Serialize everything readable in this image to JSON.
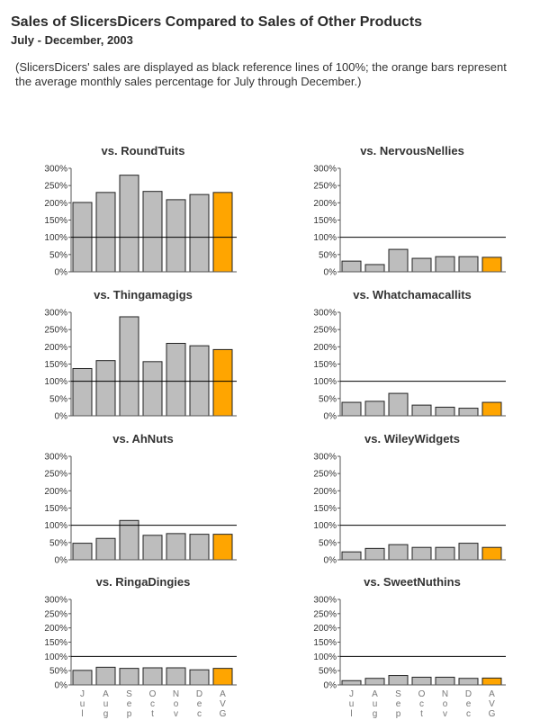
{
  "header": {
    "title": "Sales of SlicersDicers Compared to Sales of Other Products",
    "subtitle": "July - December, 2003",
    "note": "(SlicersDicers' sales are displayed as black reference lines of 100%; the orange bars represent the average monthly sales percentage for July through December.)"
  },
  "colors": {
    "bar": "#bdbdbd",
    "avg_bar": "#ffa500",
    "reference_line": "#000000"
  },
  "chart_data": [
    {
      "type": "bar",
      "title": "vs. RoundTuits",
      "categories": [
        "Jul",
        "Aug",
        "Sep",
        "Oct",
        "Nov",
        "Dec",
        "AVG"
      ],
      "values": [
        201,
        230,
        280,
        233,
        209,
        224,
        230
      ],
      "ylim": [
        0,
        300
      ],
      "y_ticks": [
        "0%",
        "50%",
        "100%",
        "150%",
        "200%",
        "250%",
        "300%"
      ],
      "reference_value": 100
    },
    {
      "type": "bar",
      "title": "vs. NervousNellies",
      "categories": [
        "Jul",
        "Aug",
        "Sep",
        "Oct",
        "Nov",
        "Dec",
        "AVG"
      ],
      "values": [
        31,
        21,
        65,
        39,
        44,
        44,
        42
      ],
      "ylim": [
        0,
        300
      ],
      "y_ticks": [
        "0%",
        "50%",
        "100%",
        "150%",
        "200%",
        "250%",
        "300%"
      ],
      "reference_value": 100
    },
    {
      "type": "bar",
      "title": "vs. Thingamagigs",
      "categories": [
        "Jul",
        "Aug",
        "Sep",
        "Oct",
        "Nov",
        "Dec",
        "AVG"
      ],
      "values": [
        137,
        160,
        287,
        157,
        210,
        203,
        192
      ],
      "ylim": [
        0,
        300
      ],
      "y_ticks": [
        "0%",
        "50%",
        "100%",
        "150%",
        "200%",
        "250%",
        "300%"
      ],
      "reference_value": 100
    },
    {
      "type": "bar",
      "title": "vs. Whatchamacallits",
      "categories": [
        "Jul",
        "Aug",
        "Sep",
        "Oct",
        "Nov",
        "Dec",
        "AVG"
      ],
      "values": [
        39,
        42,
        65,
        31,
        25,
        22,
        39
      ],
      "ylim": [
        0,
        300
      ],
      "y_ticks": [
        "0%",
        "50%",
        "100%",
        "150%",
        "200%",
        "250%",
        "300%"
      ],
      "reference_value": 100
    },
    {
      "type": "bar",
      "title": "vs. AhNuts",
      "categories": [
        "Jul",
        "Aug",
        "Sep",
        "Oct",
        "Nov",
        "Dec",
        "AVG"
      ],
      "values": [
        48,
        62,
        114,
        71,
        76,
        74,
        74
      ],
      "ylim": [
        0,
        300
      ],
      "y_ticks": [
        "0%",
        "50%",
        "100%",
        "150%",
        "200%",
        "250%",
        "300%"
      ],
      "reference_value": 100
    },
    {
      "type": "bar",
      "title": "vs. WileyWidgets",
      "categories": [
        "Jul",
        "Aug",
        "Sep",
        "Oct",
        "Nov",
        "Dec",
        "AVG"
      ],
      "values": [
        23,
        33,
        44,
        36,
        36,
        48,
        36
      ],
      "ylim": [
        0,
        300
      ],
      "y_ticks": [
        "0%",
        "50%",
        "100%",
        "150%",
        "200%",
        "250%",
        "300%"
      ],
      "reference_value": 100
    },
    {
      "type": "bar",
      "title": "vs. RingaDingies",
      "categories": [
        "Jul",
        "Aug",
        "Sep",
        "Oct",
        "Nov",
        "Dec",
        "AVG"
      ],
      "values": [
        51,
        62,
        58,
        60,
        60,
        53,
        58
      ],
      "ylim": [
        0,
        300
      ],
      "y_ticks": [
        "0%",
        "50%",
        "100%",
        "150%",
        "200%",
        "250%",
        "300%"
      ],
      "reference_value": 100
    },
    {
      "type": "bar",
      "title": "vs. SweetNuthins",
      "categories": [
        "Jul",
        "Aug",
        "Sep",
        "Oct",
        "Nov",
        "Dec",
        "AVG"
      ],
      "values": [
        15,
        23,
        33,
        27,
        27,
        23,
        24
      ],
      "ylim": [
        0,
        300
      ],
      "y_ticks": [
        "0%",
        "50%",
        "100%",
        "150%",
        "200%",
        "250%",
        "300%"
      ],
      "reference_value": 100
    }
  ],
  "x_axis": {
    "labels": [
      "Jul",
      "Aug",
      "Sep",
      "Oct",
      "Nov",
      "Dec",
      "AVG"
    ]
  }
}
